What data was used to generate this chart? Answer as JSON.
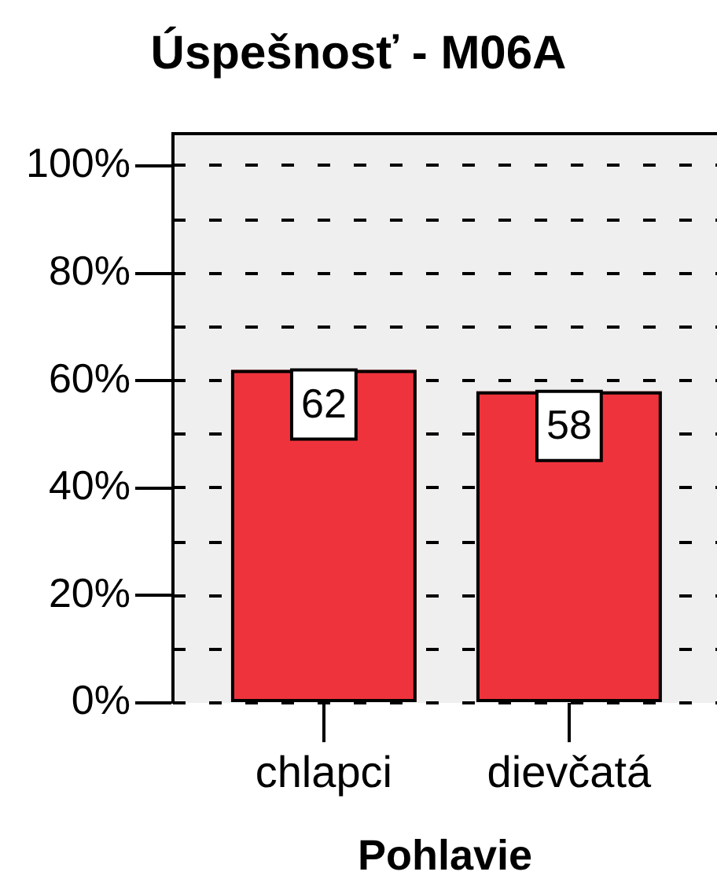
{
  "chart_data": {
    "type": "bar",
    "title": "Úspešnosť - M06A",
    "xlabel": "Pohlavie",
    "categories": [
      "chlapci",
      "dievčatá"
    ],
    "values": [
      62,
      58
    ],
    "color": "#ef333c",
    "ylim": [
      0,
      106
    ],
    "yticks": [
      {
        "value": 0,
        "label": "0%"
      },
      {
        "value": 10,
        "label": null
      },
      {
        "value": 20,
        "label": "20%"
      },
      {
        "value": 30,
        "label": null
      },
      {
        "value": 40,
        "label": "40%"
      },
      {
        "value": 50,
        "label": null
      },
      {
        "value": 60,
        "label": "60%"
      },
      {
        "value": 70,
        "label": null
      },
      {
        "value": 80,
        "label": "80%"
      },
      {
        "value": 90,
        "label": null
      },
      {
        "value": 100,
        "label": "100%"
      }
    ],
    "grid": "y",
    "data_labels": true
  }
}
